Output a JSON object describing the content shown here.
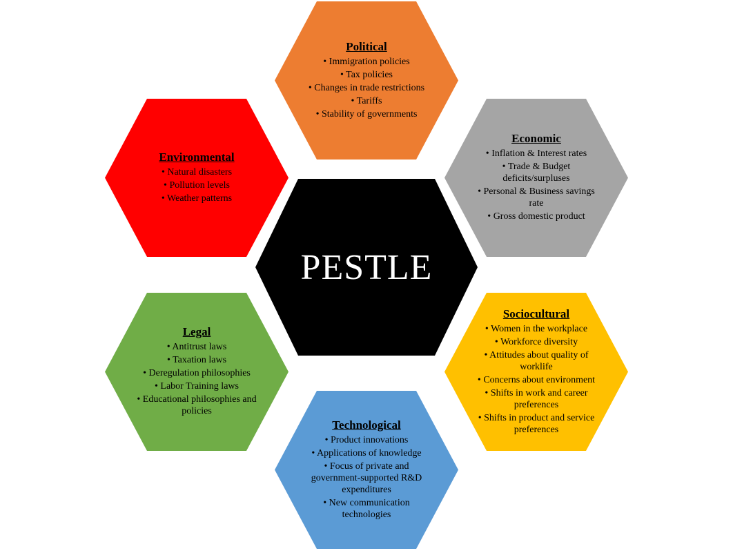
{
  "center": {
    "label": "PESTLE",
    "color": "#000000"
  },
  "segments": [
    {
      "key": "political",
      "title": "Political",
      "color": "#ED7D31",
      "items": [
        "• Immigration policies",
        "• Tax policies",
        "• Changes in trade restrictions",
        "• Tariffs",
        "• Stability of governments"
      ]
    },
    {
      "key": "economic",
      "title": "Economic",
      "color": "#A5A5A5",
      "items": [
        "• Inflation & Interest rates",
        "• Trade & Budget deficits/surpluses",
        "• Personal & Business savings rate",
        "• Gross domestic product"
      ]
    },
    {
      "key": "sociocultural",
      "title": "Sociocultural",
      "color": "#FFC000",
      "items": [
        "• Women in the workplace",
        "• Workforce diversity",
        "• Attitudes about quality of worklife",
        "• Concerns about environment",
        "• Shifts in work and career preferences",
        "• Shifts in product and service preferences"
      ]
    },
    {
      "key": "technological",
      "title": "Technological",
      "color": "#5B9BD5",
      "items": [
        "• Product innovations",
        "• Applications of knowledge",
        "• Focus of private and government-supported R&D expenditures",
        "• New communication technologies"
      ]
    },
    {
      "key": "legal",
      "title": "Legal",
      "color": "#70AD47",
      "items": [
        "• Antitrust laws",
        "• Taxation laws",
        "• Deregulation philosophies",
        "• Labor Training laws",
        "• Educational philosophies and policies"
      ]
    },
    {
      "key": "environmental",
      "title": "Environmental",
      "color": "#FF0000",
      "items": [
        "• Natural disasters",
        "• Pollution levels",
        "• Weather patterns"
      ]
    }
  ]
}
